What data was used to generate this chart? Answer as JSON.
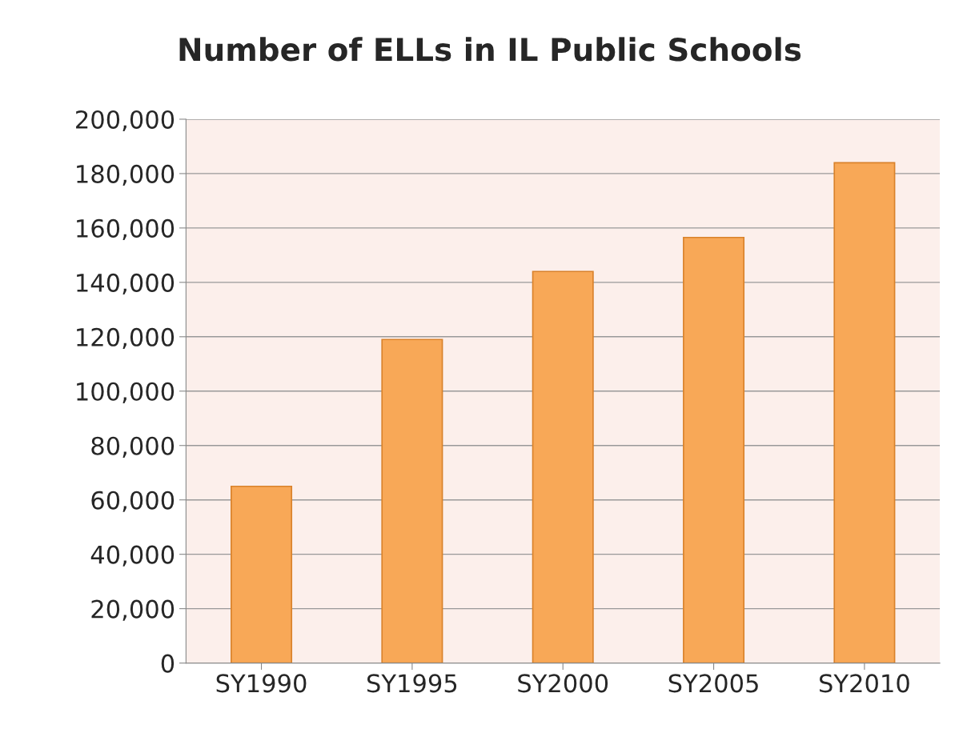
{
  "chart_data": {
    "type": "bar",
    "title": "Number of ELLs in IL Public Schools",
    "categories": [
      "SY1990",
      "SY1995",
      "SY2000",
      "SY2005",
      "SY2010"
    ],
    "values": [
      65000,
      119000,
      144000,
      156500,
      184000
    ],
    "color": "#f8a857",
    "ylim": [
      0,
      200000
    ],
    "yticks": [
      {
        "value": 0,
        "label": "0"
      },
      {
        "value": 20000,
        "label": "20,000"
      },
      {
        "value": 40000,
        "label": "40,000"
      },
      {
        "value": 60000,
        "label": "60,000"
      },
      {
        "value": 80000,
        "label": "80,000"
      },
      {
        "value": 100000,
        "label": "100,000"
      },
      {
        "value": 120000,
        "label": "120,000"
      },
      {
        "value": 140000,
        "label": "140,000"
      },
      {
        "value": 160000,
        "label": "160,000"
      },
      {
        "value": 180000,
        "label": "180,000"
      },
      {
        "value": 200000,
        "label": "200,000"
      }
    ],
    "grid": "y"
  }
}
